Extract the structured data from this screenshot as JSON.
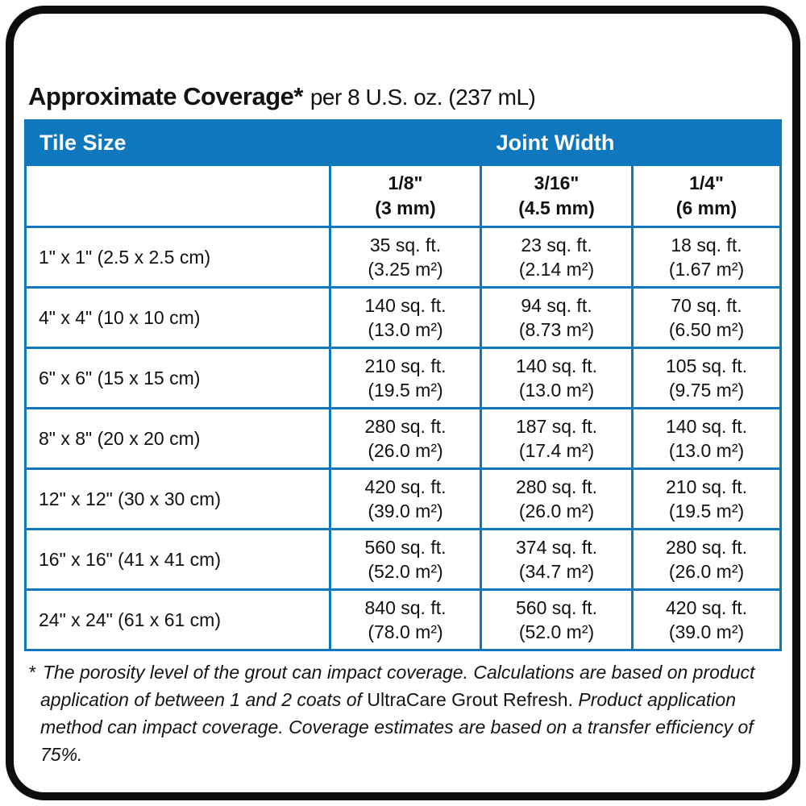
{
  "title": {
    "main": "Approximate Coverage*",
    "suffix": "per 8 U.S. oz. (237 mL)"
  },
  "colors": {
    "table_blue": "#0f77bd",
    "border_black": "#0d0d0d",
    "header_text": "#ffffff"
  },
  "table": {
    "header": {
      "tile_size": "Tile Size",
      "joint_width": "Joint Width"
    },
    "joint_columns": [
      {
        "inches": "1/8\"",
        "mm": "(3 mm)"
      },
      {
        "inches": "3/16\"",
        "mm": "(4.5 mm)"
      },
      {
        "inches": "1/4\"",
        "mm": "(6 mm)"
      }
    ],
    "rows": [
      {
        "tile": "1\" x 1\" (2.5 x 2.5 cm)",
        "values": [
          {
            "sqft": "35 sq. ft.",
            "m2": "(3.25 m²)"
          },
          {
            "sqft": "23 sq. ft.",
            "m2": "(2.14 m²)"
          },
          {
            "sqft": "18 sq. ft.",
            "m2": "(1.67 m²)"
          }
        ]
      },
      {
        "tile": "4\" x 4\" (10 x 10 cm)",
        "values": [
          {
            "sqft": "140 sq. ft.",
            "m2": "(13.0 m²)"
          },
          {
            "sqft": "94 sq. ft.",
            "m2": "(8.73 m²)"
          },
          {
            "sqft": "70 sq. ft.",
            "m2": "(6.50 m²)"
          }
        ]
      },
      {
        "tile": "6\" x 6\" (15 x 15 cm)",
        "values": [
          {
            "sqft": "210 sq. ft.",
            "m2": "(19.5 m²)"
          },
          {
            "sqft": "140 sq. ft.",
            "m2": "(13.0 m²)"
          },
          {
            "sqft": "105 sq. ft.",
            "m2": "(9.75 m²)"
          }
        ]
      },
      {
        "tile": "8\" x 8\" (20 x 20 cm)",
        "values": [
          {
            "sqft": "280 sq. ft.",
            "m2": "(26.0 m²)"
          },
          {
            "sqft": "187 sq. ft.",
            "m2": "(17.4 m²)"
          },
          {
            "sqft": "140 sq. ft.",
            "m2": "(13.0 m²)"
          }
        ]
      },
      {
        "tile": "12\" x 12\" (30 x 30 cm)",
        "values": [
          {
            "sqft": "420 sq. ft.",
            "m2": "(39.0 m²)"
          },
          {
            "sqft": "280 sq. ft.",
            "m2": "(26.0 m²)"
          },
          {
            "sqft": "210 sq. ft.",
            "m2": "(19.5 m²)"
          }
        ]
      },
      {
        "tile": "16\" x 16\" (41 x 41 cm)",
        "values": [
          {
            "sqft": "560 sq. ft.",
            "m2": "(52.0 m²)"
          },
          {
            "sqft": "374 sq. ft.",
            "m2": "(34.7 m²)"
          },
          {
            "sqft": "280 sq. ft.",
            "m2": "(26.0 m²)"
          }
        ]
      },
      {
        "tile": "24\" x 24\" (61 x 61 cm)",
        "values": [
          {
            "sqft": "840 sq. ft.",
            "m2": "(78.0 m²)"
          },
          {
            "sqft": "560 sq. ft.",
            "m2": "(52.0 m²)"
          },
          {
            "sqft": "420 sq. ft.",
            "m2": "(39.0 m²)"
          }
        ]
      }
    ]
  },
  "footnote": {
    "marker": "*",
    "line1": "The porosity level of the grout can impact coverage. Calculations are based on product",
    "line2_italic": "application of between 1 and 2 coats of ",
    "line2_regular": "UltraCare Grout Refresh.",
    "line2_end": " Product application",
    "line3": "method can impact coverage. Coverage estimates are based on a transfer efficiency of 75%."
  }
}
